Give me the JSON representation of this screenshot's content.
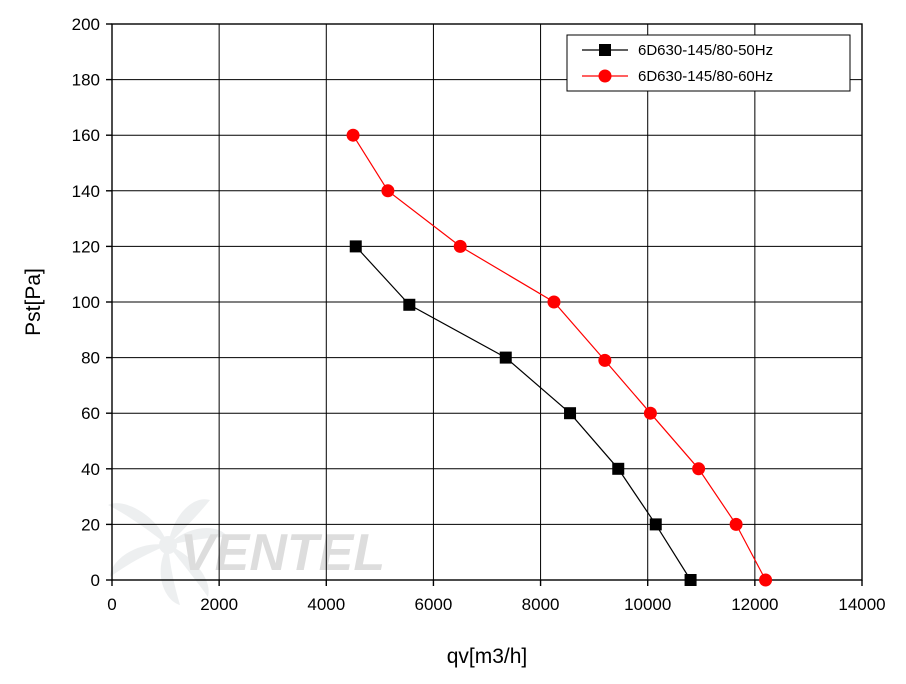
{
  "chart_data": {
    "type": "line",
    "title": "",
    "xlabel": "qv[m3/h]",
    "ylabel": "Pst[Pa]",
    "xlim": [
      0,
      14000
    ],
    "ylim": [
      0,
      200
    ],
    "x_ticks": [
      "0",
      "2000",
      "4000",
      "6000",
      "8000",
      "10000",
      "12000",
      "14000"
    ],
    "y_ticks": [
      "0",
      "20",
      "40",
      "60",
      "80",
      "100",
      "120",
      "140",
      "160",
      "180",
      "200"
    ],
    "grid": true,
    "legend_position": "top-right",
    "watermark": "VENTEL",
    "series": [
      {
        "name": "6D630-145/80-50Hz",
        "color": "#000000",
        "marker": "square",
        "points": [
          [
            4550,
            120
          ],
          [
            5550,
            99
          ],
          [
            7350,
            80
          ],
          [
            8550,
            60
          ],
          [
            9450,
            40
          ],
          [
            10150,
            20
          ],
          [
            10800,
            0
          ]
        ]
      },
      {
        "name": "6D630-145/80-60Hz",
        "color": "#ff0000",
        "marker": "circle",
        "points": [
          [
            4500,
            160
          ],
          [
            5150,
            140
          ],
          [
            6500,
            120
          ],
          [
            8250,
            100
          ],
          [
            9200,
            79
          ],
          [
            10050,
            60
          ],
          [
            10950,
            40
          ],
          [
            11650,
            20
          ],
          [
            12200,
            0
          ]
        ]
      }
    ]
  }
}
